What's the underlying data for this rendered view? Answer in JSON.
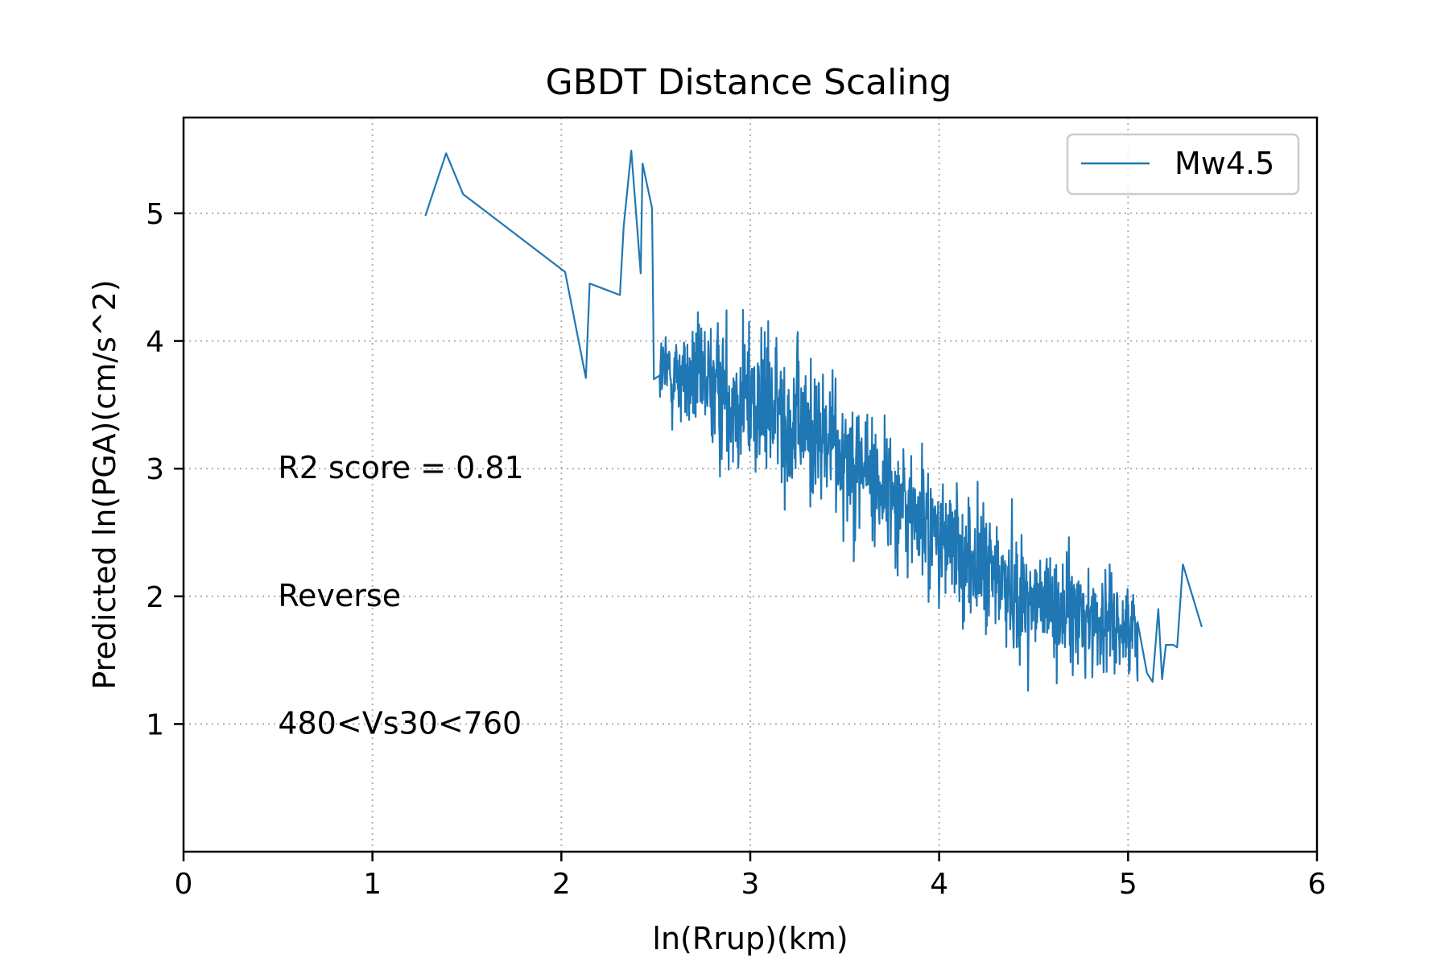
{
  "chart_data": {
    "type": "line",
    "title": "GBDT Distance Scaling",
    "xlabel": "ln(Rrup)(km)",
    "ylabel": "Predicted ln(PGA)(cm/s^2)",
    "xlim": [
      0,
      6
    ],
    "ylim": [
      0,
      5.75
    ],
    "xticks": [
      0,
      1,
      2,
      3,
      4,
      5,
      6
    ],
    "yticks": [
      1,
      2,
      3,
      4,
      5
    ],
    "grid": true,
    "legend_position": "top-right",
    "annotations": [
      {
        "text": "R2 score = 0.81",
        "x": 0.5,
        "y": 3.0
      },
      {
        "text": "Reverse",
        "x": 0.5,
        "y": 2.0
      },
      {
        "text": "480<Vs30<760",
        "x": 0.5,
        "y": 1.0
      }
    ],
    "series": [
      {
        "name": "Mw4.5",
        "color": "#1f77b4",
        "anchors": {
          "x": [
            1.28,
            1.39,
            1.48,
            2.02,
            2.13,
            2.15,
            2.31,
            2.33,
            2.37,
            2.42,
            2.43,
            2.48,
            2.49,
            2.52
          ],
          "y": [
            4.98,
            5.47,
            5.15,
            4.54,
            3.71,
            4.45,
            4.36,
            4.9,
            5.49,
            4.53,
            5.39,
            5.04,
            3.7,
            3.73
          ]
        },
        "noisy_segment": {
          "x_start": 2.52,
          "x_end": 5.05,
          "n_points": 1100,
          "trend": {
            "x": [
              2.55,
              3.0,
              3.5,
              4.0,
              4.5,
              5.0
            ],
            "y": [
              3.75,
              3.55,
              3.15,
              2.45,
              1.95,
              1.75
            ]
          },
          "spread": {
            "x": [
              2.55,
              3.0,
              3.5,
              4.0,
              4.5,
              5.0
            ],
            "y": [
              0.45,
              0.8,
              0.7,
              0.65,
              0.6,
              0.45
            ]
          }
        },
        "tail": {
          "x": [
            5.05,
            5.1,
            5.13,
            5.16,
            5.18,
            5.2,
            5.22,
            5.24,
            5.26,
            5.29,
            5.39
          ],
          "y": [
            1.8,
            1.4,
            1.33,
            1.9,
            1.35,
            1.62,
            1.62,
            1.62,
            1.6,
            2.25,
            1.76
          ]
        }
      }
    ]
  }
}
